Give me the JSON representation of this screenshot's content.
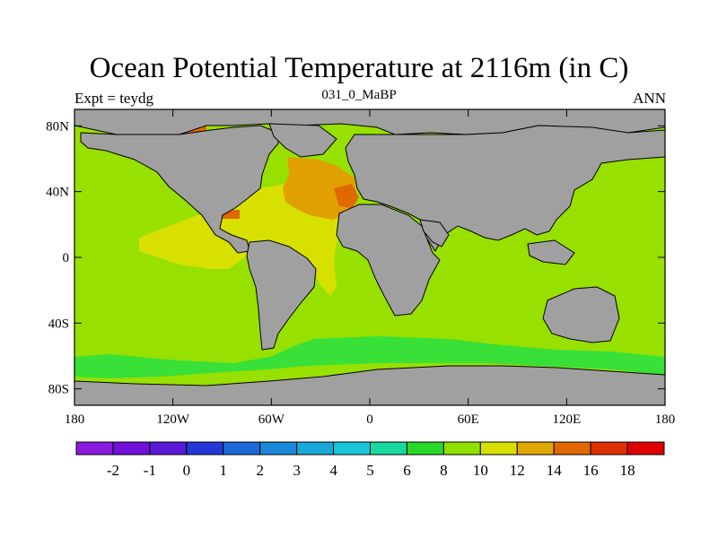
{
  "title": "Ocean Potential Temperature at 2116m (in C)",
  "subtitle_left": "Expt = teydg",
  "subtitle_center": "031_0_MaBP",
  "subtitle_right": "ANN",
  "map": {
    "type": "heatmap",
    "lon_range": [
      -180,
      180
    ],
    "lat_range": [
      -90,
      90
    ],
    "x_ticks": [
      "180",
      "120W",
      "60W",
      "0",
      "60E",
      "120E",
      "180"
    ],
    "x_tick_values": [
      -180,
      -120,
      -60,
      0,
      60,
      120,
      180
    ],
    "y_ticks": [
      "80N",
      "40N",
      "0",
      "40S",
      "80S"
    ],
    "y_tick_values": [
      80,
      40,
      0,
      -40,
      -80
    ],
    "land_color": "#a0a0a0"
  },
  "colorbar": {
    "labels": [
      "-2",
      "-1",
      "0",
      "1",
      "2",
      "3",
      "4",
      "5",
      "6",
      "8",
      "10",
      "12",
      "14",
      "16",
      "18"
    ],
    "colors": [
      "#8a1ae0",
      "#7010d8",
      "#5a18d8",
      "#2438d8",
      "#1a6ad8",
      "#1a88d8",
      "#18a8d8",
      "#18c8d8",
      "#18d8a0",
      "#28d828",
      "#90e000",
      "#d8e000",
      "#e0a800",
      "#e06800",
      "#e03000",
      "#e00000"
    ]
  },
  "legend_colors": {
    "c8": "#38e038",
    "c10": "#98e000",
    "c12": "#d8e000",
    "c14": "#e0a000",
    "c16": "#e06800",
    "c18": "#e00000"
  }
}
